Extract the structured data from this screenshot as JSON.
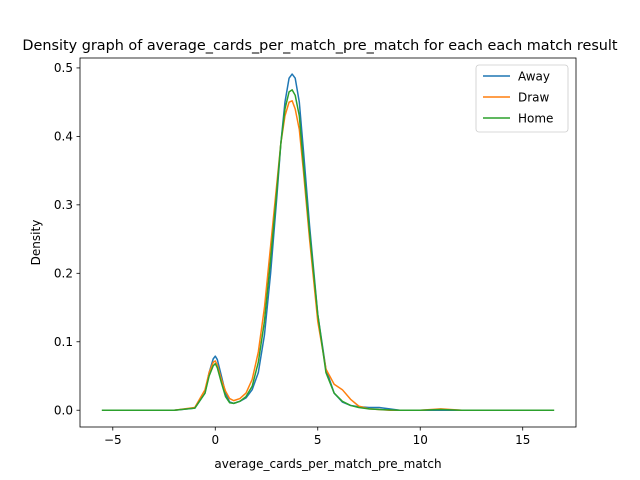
{
  "chart_data": {
    "type": "line",
    "title": "Density graph of average_cards_per_match_pre_match for each each match result",
    "xlabel": "average_cards_per_match_pre_match",
    "ylabel": "Density",
    "xlim": [
      -6.6,
      17.6
    ],
    "ylim": [
      -0.0245,
      0.5145
    ],
    "xticks": [
      -5,
      0,
      5,
      10,
      15
    ],
    "xtick_labels": [
      "−5",
      "0",
      "5",
      "10",
      "15"
    ],
    "yticks": [
      0.0,
      0.1,
      0.2,
      0.3,
      0.4,
      0.5
    ],
    "ytick_labels": [
      "0.0",
      "0.1",
      "0.2",
      "0.3",
      "0.4",
      "0.5"
    ],
    "grid": false,
    "legend_position": "upper right",
    "series": [
      {
        "name": "Away",
        "color": "#1f77b4",
        "x": [
          -4.0,
          -2.0,
          -1.0,
          -0.5,
          -0.3,
          -0.1,
          0.0,
          0.1,
          0.3,
          0.5,
          0.7,
          0.9,
          1.2,
          1.5,
          1.8,
          2.1,
          2.4,
          2.7,
          3.0,
          3.2,
          3.4,
          3.6,
          3.75,
          3.9,
          4.1,
          4.3,
          4.6,
          5.0,
          5.4,
          5.8,
          6.2,
          6.6,
          7.0,
          7.5,
          8.0,
          8.5,
          9.0,
          10.0,
          11.0,
          12.0
        ],
        "y": [
          0.0,
          0.0,
          0.003,
          0.025,
          0.055,
          0.075,
          0.079,
          0.074,
          0.05,
          0.025,
          0.012,
          0.01,
          0.013,
          0.018,
          0.03,
          0.055,
          0.11,
          0.2,
          0.31,
          0.39,
          0.45,
          0.485,
          0.491,
          0.485,
          0.45,
          0.38,
          0.27,
          0.14,
          0.06,
          0.025,
          0.012,
          0.007,
          0.005,
          0.004,
          0.004,
          0.002,
          0.0,
          0.0,
          0.0,
          0.0
        ]
      },
      {
        "name": "Draw",
        "color": "#ff7f0e",
        "x": [
          -4.0,
          -2.0,
          -1.0,
          -0.5,
          -0.3,
          -0.1,
          0.0,
          0.1,
          0.3,
          0.5,
          0.7,
          0.9,
          1.2,
          1.5,
          1.8,
          2.1,
          2.4,
          2.7,
          3.0,
          3.2,
          3.4,
          3.6,
          3.75,
          3.9,
          4.1,
          4.3,
          4.6,
          5.0,
          5.4,
          5.8,
          6.2,
          6.6,
          7.0,
          7.5,
          8.0,
          8.5,
          9.0,
          10.0,
          11.0,
          12.0
        ],
        "y": [
          0.0,
          0.0,
          0.004,
          0.03,
          0.055,
          0.07,
          0.072,
          0.066,
          0.045,
          0.028,
          0.017,
          0.014,
          0.017,
          0.025,
          0.045,
          0.085,
          0.15,
          0.24,
          0.33,
          0.39,
          0.43,
          0.45,
          0.452,
          0.44,
          0.41,
          0.35,
          0.25,
          0.13,
          0.06,
          0.038,
          0.03,
          0.016,
          0.006,
          0.002,
          0.001,
          0.0,
          0.0,
          0.0,
          0.002,
          0.0
        ]
      },
      {
        "name": "Home",
        "color": "#2ca02c",
        "x": [
          -5.5,
          -4.0,
          -2.0,
          -1.0,
          -0.5,
          -0.3,
          -0.1,
          0.0,
          0.1,
          0.3,
          0.5,
          0.7,
          0.9,
          1.2,
          1.5,
          1.8,
          2.1,
          2.4,
          2.7,
          3.0,
          3.2,
          3.4,
          3.6,
          3.75,
          3.9,
          4.1,
          4.3,
          4.6,
          5.0,
          5.4,
          5.8,
          6.2,
          6.6,
          7.0,
          7.5,
          8.0,
          9.0,
          10.0,
          11.0,
          12.0,
          14.0,
          16.5
        ],
        "y": [
          0.0,
          0.0,
          0.0,
          0.003,
          0.025,
          0.05,
          0.065,
          0.068,
          0.062,
          0.04,
          0.02,
          0.011,
          0.01,
          0.013,
          0.02,
          0.035,
          0.07,
          0.13,
          0.22,
          0.32,
          0.39,
          0.44,
          0.465,
          0.468,
          0.46,
          0.43,
          0.36,
          0.26,
          0.14,
          0.055,
          0.025,
          0.013,
          0.007,
          0.004,
          0.002,
          0.001,
          0.0,
          0.0,
          0.001,
          0.0,
          0.0,
          0.0
        ]
      }
    ]
  }
}
